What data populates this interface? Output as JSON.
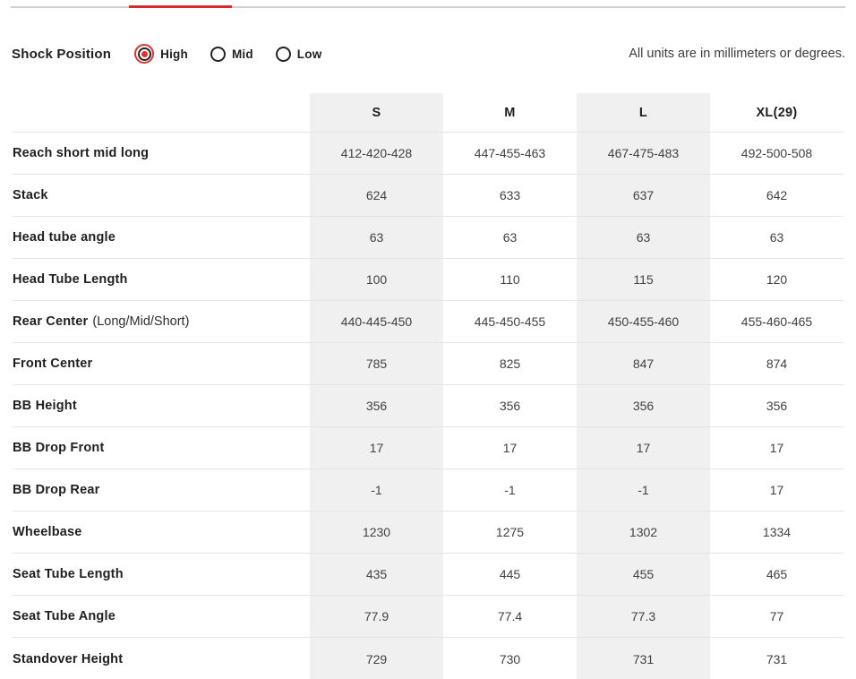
{
  "page": {
    "units_note": "All units are in millimeters or degrees."
  },
  "shock_position": {
    "label": "Shock Position",
    "options": [
      {
        "label": "High",
        "selected": true
      },
      {
        "label": "Mid",
        "selected": false
      },
      {
        "label": "Low",
        "selected": false
      }
    ]
  },
  "table": {
    "columns": [
      "S",
      "M",
      "L",
      "XL(29)"
    ],
    "rows": [
      {
        "label": "Reach short mid long",
        "note": "",
        "values": [
          "412-420-428",
          "447-455-463",
          "467-475-483",
          "492-500-508"
        ]
      },
      {
        "label": "Stack",
        "note": "",
        "values": [
          "624",
          "633",
          "637",
          "642"
        ]
      },
      {
        "label": "Head tube angle",
        "note": "",
        "values": [
          "63",
          "63",
          "63",
          "63"
        ]
      },
      {
        "label": "Head Tube Length",
        "note": "",
        "values": [
          "100",
          "110",
          "115",
          "120"
        ]
      },
      {
        "label": "Rear Center",
        "note": "(Long/Mid/Short)",
        "values": [
          "440-445-450",
          "445-450-455",
          "450-455-460",
          "455-460-465"
        ]
      },
      {
        "label": "Front Center",
        "note": "",
        "values": [
          "785",
          "825",
          "847",
          "874"
        ]
      },
      {
        "label": "BB Height",
        "note": "",
        "values": [
          "356",
          "356",
          "356",
          "356"
        ]
      },
      {
        "label": "BB Drop Front",
        "note": "",
        "values": [
          "17",
          "17",
          "17",
          "17"
        ]
      },
      {
        "label": "BB Drop Rear",
        "note": "",
        "values": [
          "-1",
          "-1",
          "-1",
          "17"
        ]
      },
      {
        "label": "Wheelbase",
        "note": "",
        "values": [
          "1230",
          "1275",
          "1302",
          "1334"
        ]
      },
      {
        "label": "Seat Tube Length",
        "note": "",
        "values": [
          "435",
          "445",
          "455",
          "465"
        ]
      },
      {
        "label": "Seat Tube Angle",
        "note": "",
        "values": [
          "77.9",
          "77.4",
          "77.3",
          "77"
        ]
      },
      {
        "label": "Standover Height",
        "note": "",
        "values": [
          "729",
          "730",
          "731",
          "731"
        ]
      }
    ]
  },
  "colors": {
    "accent_red": "#e0312e",
    "tab_underline_red": "#d7282d",
    "shaded_column": "#f0f0f0",
    "divider": "#e4e4e4"
  }
}
